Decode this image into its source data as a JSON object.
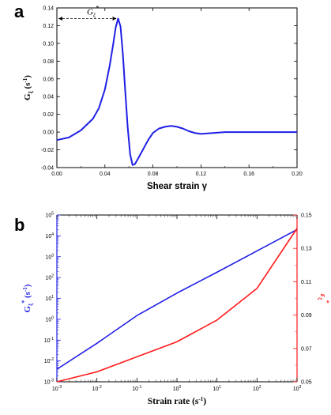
{
  "panels": {
    "a": {
      "letter": "a"
    },
    "b": {
      "letter": "b"
    }
  },
  "colors": {
    "series_blue": "#1f1fe6",
    "series_red": "#ff1a1a",
    "axis": "#000000"
  },
  "chart_data": [
    {
      "id": "a",
      "type": "line",
      "title": "",
      "xlabel": "Shear strain γ",
      "ylabel": "G_ξ (s⁻¹)",
      "ylabel_main": "G",
      "ylabel_sub": "ξ",
      "ylabel_unit": " (s",
      "ylabel_sup": "-1",
      "ylabel_close": ")",
      "xlim": [
        0.0,
        0.2
      ],
      "ylim": [
        -0.04,
        0.14
      ],
      "xticks": [
        "0.00",
        "0.04",
        "0.08",
        "0.12",
        "0.16",
        "0.20"
      ],
      "yticks": [
        "-0.04",
        "-0.02",
        "0.00",
        "0.02",
        "0.04",
        "0.06",
        "0.08",
        "0.10",
        "0.12",
        "0.14"
      ],
      "annotation": {
        "main": "G",
        "sub": "ξ",
        "sup": "*",
        "peak_x": 0.051,
        "peak_y": 0.128
      },
      "series": [
        {
          "color": "#1f1fe6",
          "x": [
            0.0,
            0.01,
            0.02,
            0.03,
            0.035,
            0.04,
            0.044,
            0.047,
            0.049,
            0.051,
            0.053,
            0.055,
            0.057,
            0.059,
            0.061,
            0.063,
            0.065,
            0.068,
            0.072,
            0.076,
            0.08,
            0.085,
            0.09,
            0.095,
            0.1,
            0.105,
            0.11,
            0.115,
            0.12,
            0.13,
            0.14,
            0.16,
            0.18,
            0.2
          ],
          "y": [
            -0.009,
            -0.006,
            0.002,
            0.015,
            0.027,
            0.048,
            0.075,
            0.1,
            0.118,
            0.128,
            0.119,
            0.087,
            0.045,
            0.005,
            -0.025,
            -0.037,
            -0.036,
            -0.029,
            -0.019,
            -0.009,
            -0.001,
            0.004,
            0.006,
            0.007,
            0.006,
            0.004,
            0.001,
            -0.001,
            -0.002,
            -0.001,
            0.0,
            0.0,
            0.0,
            0.0
          ]
        }
      ]
    },
    {
      "id": "b",
      "type": "line",
      "title": "",
      "xlabel": "Strain rate (s⁻¹)",
      "xlabel_main": "Strain rate (s",
      "xlabel_sup": "-1",
      "xlabel_close": ")",
      "ylabel_left": "G_ξ* (s⁻¹)",
      "ylabel_left_main": "G",
      "ylabel_left_sub": "ξ",
      "ylabel_left_sup": "*",
      "ylabel_left_unit": " (s",
      "ylabel_left_unit_sup": "-1",
      "ylabel_left_close": ")",
      "ylabel_right": "ε_ξ*",
      "ylabel_right_main": "ε",
      "ylabel_right_sub": "ξ",
      "ylabel_right_sup": "*",
      "xscale": "log",
      "yscale_left": "log",
      "xlim": [
        0.001,
        1000
      ],
      "ylim_left": [
        0.001,
        100000
      ],
      "ylim_right": [
        0.05,
        0.15
      ],
      "xticks": [
        {
          "base": "10",
          "exp": "-3"
        },
        {
          "base": "10",
          "exp": "-2"
        },
        {
          "base": "10",
          "exp": "-1"
        },
        {
          "base": "10",
          "exp": "0"
        },
        {
          "base": "10",
          "exp": "1"
        },
        {
          "base": "10",
          "exp": "2"
        },
        {
          "base": "10",
          "exp": "3"
        }
      ],
      "yticks_left": [
        {
          "base": "10",
          "exp": "-3"
        },
        {
          "base": "10",
          "exp": "-2"
        },
        {
          "base": "10",
          "exp": "-1"
        },
        {
          "base": "10",
          "exp": "0"
        },
        {
          "base": "10",
          "exp": "1"
        },
        {
          "base": "10",
          "exp": "2"
        },
        {
          "base": "10",
          "exp": "3"
        },
        {
          "base": "10",
          "exp": "4"
        },
        {
          "base": "10",
          "exp": "5"
        }
      ],
      "yticks_right": [
        "0.05",
        "0.07",
        "0.09",
        "0.11",
        "0.13",
        "0.15"
      ],
      "series": [
        {
          "axis": "left",
          "color": "#1f1fe6",
          "x": [
            0.001,
            0.01,
            0.1,
            1,
            10,
            100,
            1000
          ],
          "y": [
            0.004,
            0.07,
            1.5,
            18,
            180,
            1900,
            20000
          ]
        },
        {
          "axis": "right",
          "color": "#ff1a1a",
          "x": [
            0.001,
            0.01,
            0.1,
            1,
            10,
            100,
            1000
          ],
          "y": [
            0.05,
            0.056,
            0.065,
            0.074,
            0.087,
            0.106,
            0.142
          ]
        }
      ]
    }
  ]
}
